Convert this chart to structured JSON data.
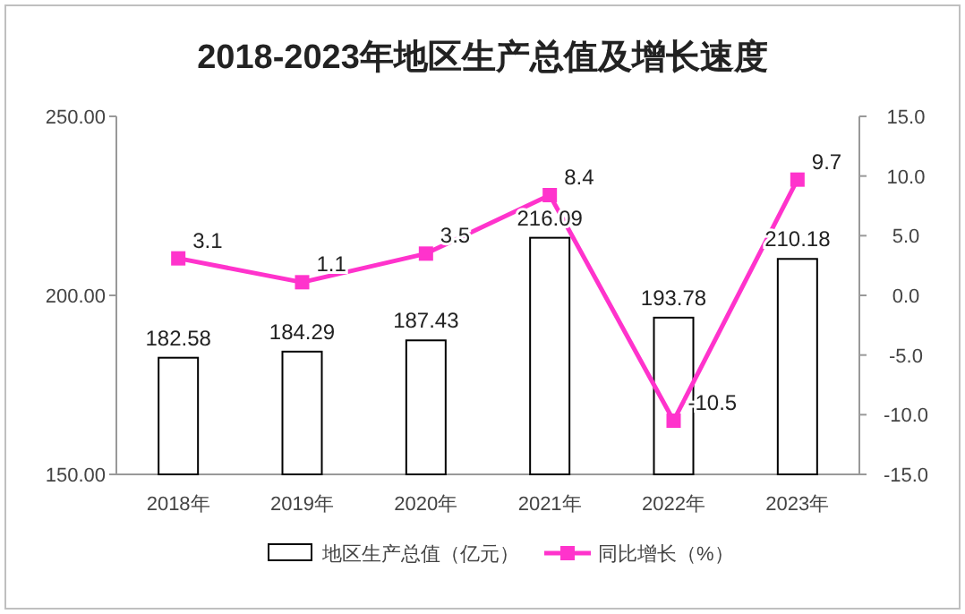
{
  "chart_data": {
    "type": "bar",
    "title": "2018-2023年地区生产总值及增长速度",
    "categories": [
      "2018年",
      "2019年",
      "2020年",
      "2021年",
      "2022年",
      "2023年"
    ],
    "series": [
      {
        "name": "地区生产总值（亿元）",
        "color": "#ffffff",
        "values": [
          182.58,
          184.29,
          187.43,
          216.09,
          193.78,
          210.18
        ]
      },
      {
        "name": "同比增长（%）",
        "type": "line",
        "axis": "y2",
        "color": "#ff33cc",
        "marker": "square",
        "values": [
          3.1,
          1.1,
          3.5,
          8.4,
          -10.5,
          9.7
        ]
      }
    ],
    "ylim": [
      150,
      250
    ],
    "yticks": [
      {
        "value": 150,
        "label": "150.00"
      },
      {
        "value": 200,
        "label": "200.00"
      },
      {
        "value": 250,
        "label": "250.00"
      }
    ],
    "y2lim": [
      -15,
      15
    ],
    "y2ticks": [
      {
        "value": -15,
        "label": "-15.0"
      },
      {
        "value": -10,
        "label": "-10.0"
      },
      {
        "value": -5,
        "label": "-5.0"
      },
      {
        "value": 0,
        "label": "0.0"
      },
      {
        "value": 5,
        "label": "5.0"
      },
      {
        "value": 10,
        "label": "10.0"
      },
      {
        "value": 15,
        "label": "15.0"
      }
    ],
    "data_labels": true,
    "legend": "bottom",
    "grid": false
  }
}
